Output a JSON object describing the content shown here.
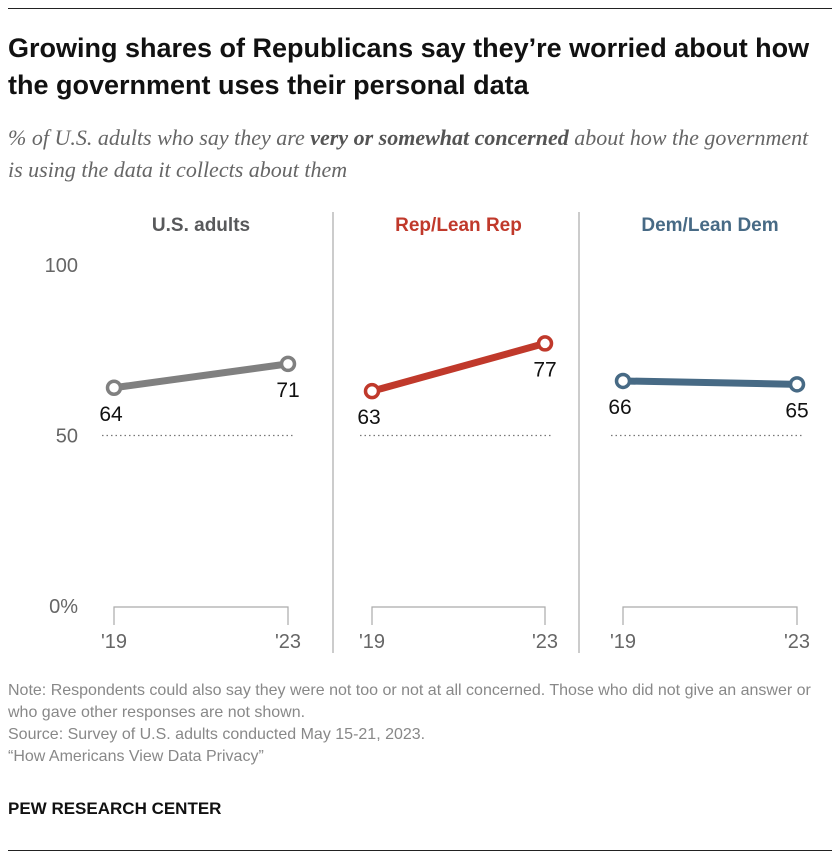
{
  "title": "Growing shares of Republicans say they’re worried about how the government uses their personal data",
  "subtitle": {
    "before": "% of U.S. adults who say they are ",
    "emphasis": "very or somewhat concerned",
    "after": " about how the government is using the data it collects about them"
  },
  "chart_data": {
    "type": "line",
    "y_ticks": [
      "100",
      "50",
      "0%"
    ],
    "ylim": [
      0,
      100
    ],
    "reference_line": 50,
    "panels": [
      {
        "name": "U.S. adults",
        "color": "#808080",
        "title_color": "#58595b",
        "x": [
          "'19",
          "'23"
        ],
        "values": [
          64,
          71
        ]
      },
      {
        "name": "Rep/Lean Rep",
        "color": "#c0392b",
        "title_color": "#c0392b",
        "x": [
          "'19",
          "'23"
        ],
        "values": [
          63,
          77
        ]
      },
      {
        "name": "Dem/Lean Dem",
        "color": "#476a85",
        "title_color": "#476a85",
        "x": [
          "'19",
          "'23"
        ],
        "values": [
          66,
          65
        ]
      }
    ]
  },
  "notes": {
    "note": "Note: Respondents could also say they were not too or not at all concerned. Those who did not give an answer or who gave other responses are not shown.",
    "source": "Source: Survey of U.S. adults conducted May 15-21, 2023.",
    "report": "“How Americans View Data Privacy”"
  },
  "brand": "PEW RESEARCH CENTER"
}
